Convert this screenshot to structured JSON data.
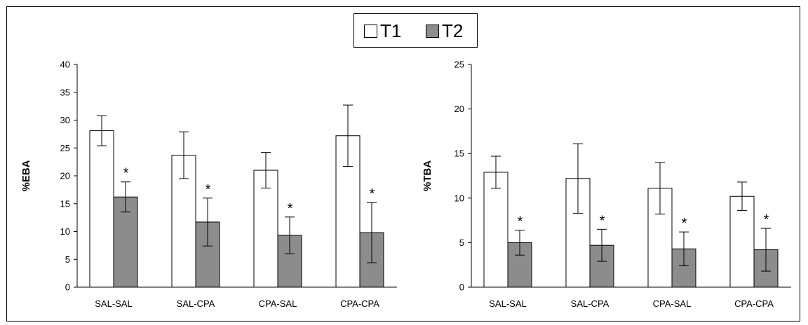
{
  "legend": {
    "items": [
      {
        "label": "T1",
        "color": "#ffffff"
      },
      {
        "label": "T2",
        "color": "#8c8c8c"
      }
    ]
  },
  "chart_data": [
    {
      "type": "bar",
      "ylabel": "%EBA",
      "ylim": [
        0,
        40
      ],
      "yticks": [
        "0",
        "5",
        "10",
        "15",
        "20",
        "25",
        "30",
        "35",
        "40"
      ],
      "categories": [
        "SAL-SAL",
        "SAL-CPA",
        "CPA-SAL",
        "CPA-CPA"
      ],
      "series": [
        {
          "name": "T1",
          "color": "#ffffff",
          "values": [
            28.1,
            23.7,
            21.0,
            27.2
          ],
          "errors": [
            2.7,
            4.2,
            3.2,
            5.5
          ]
        },
        {
          "name": "T2",
          "color": "#8c8c8c",
          "values": [
            16.2,
            11.7,
            9.3,
            9.8
          ],
          "errors": [
            2.7,
            4.3,
            3.3,
            5.4
          ]
        }
      ],
      "annotations": [
        "*",
        "*",
        "*",
        "*"
      ]
    },
    {
      "type": "bar",
      "ylabel": "%TBA",
      "ylim": [
        0,
        25
      ],
      "yticks": [
        "0",
        "5",
        "10",
        "15",
        "20",
        "25"
      ],
      "categories": [
        "SAL-SAL",
        "SAL-CPA",
        "CPA-SAL",
        "CPA-CPA"
      ],
      "series": [
        {
          "name": "T1",
          "color": "#ffffff",
          "values": [
            12.9,
            12.2,
            11.1,
            10.2
          ],
          "errors": [
            1.8,
            3.9,
            2.9,
            1.6
          ]
        },
        {
          "name": "T2",
          "color": "#8c8c8c",
          "values": [
            5.0,
            4.7,
            4.3,
            4.2
          ],
          "errors": [
            1.4,
            1.8,
            1.9,
            2.4
          ]
        }
      ],
      "annotations": [
        "*",
        "*",
        "*",
        "*"
      ]
    }
  ]
}
